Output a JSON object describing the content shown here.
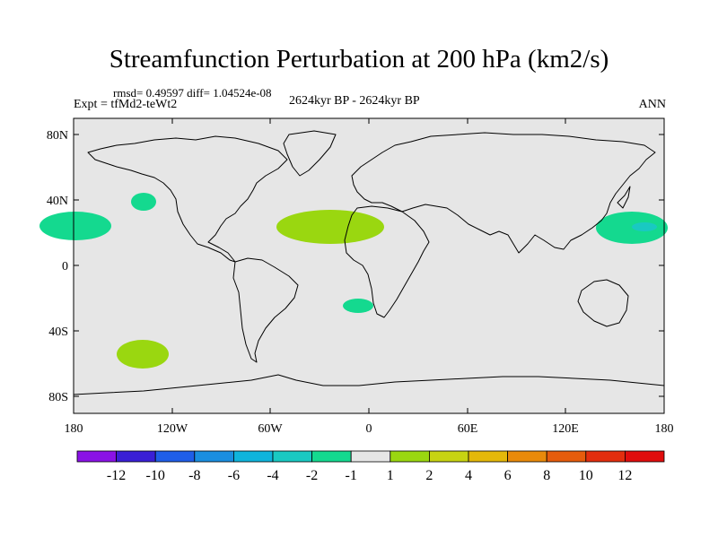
{
  "title": "Streamfunction Perturbation at 200 hPa (km2/s)",
  "stats_line": "rmsd= 0.49597 diff= 1.04524e-08",
  "experiment": "Expt = tfMd2-teWt2",
  "period": "2624kyr BP - 2624kyr BP",
  "season": "ANN",
  "lat_labels": [
    "80N",
    "40N",
    "0",
    "40S",
    "80S"
  ],
  "lon_labels": [
    "180",
    "120W",
    "60W",
    "0",
    "60E",
    "120E",
    "180"
  ],
  "colorbar": {
    "labels": [
      "-12",
      "-10",
      "-8",
      "-6",
      "-4",
      "-2",
      "-1",
      "1",
      "2",
      "4",
      "6",
      "8",
      "10",
      "12"
    ],
    "colors": [
      "#8a12e6",
      "#3a1fd6",
      "#1f5ee8",
      "#1a8ee0",
      "#0fb4dc",
      "#19c9c2",
      "#14d98f",
      "#e6e6e6",
      "#9ad710",
      "#c7d312",
      "#e4b80a",
      "#e98a0a",
      "#e65c0c",
      "#e32e0e",
      "#e00d0d"
    ]
  },
  "colors": {
    "ocean": "#e6e6e6",
    "positive_level_1_2": "#9ad710",
    "negative_level_1_2": "#14d98f",
    "negative_level_2_4": "#19c9c2"
  }
}
